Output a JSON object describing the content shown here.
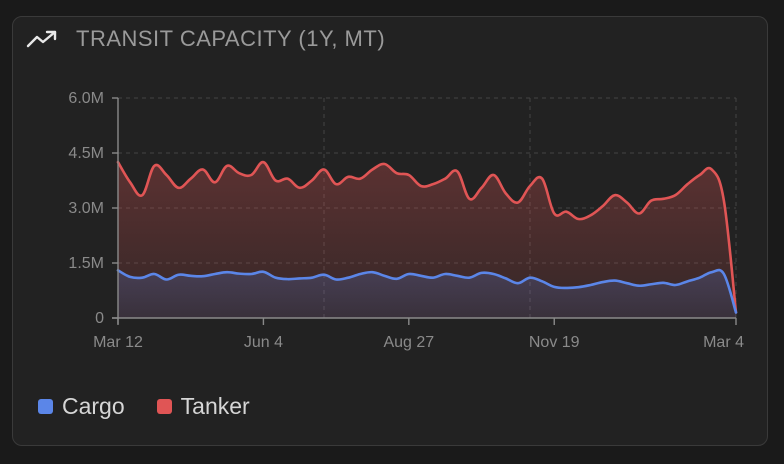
{
  "card": {
    "title": "TRANSIT CAPACITY (1Y, MT)",
    "icon": "trending-up-icon"
  },
  "colors": {
    "cargo": "#5b86e8",
    "tanker": "#e05555",
    "axis": "#8a8a8a",
    "grid": "#444444"
  },
  "chart_data": {
    "type": "area",
    "title": "TRANSIT CAPACITY (1Y, MT)",
    "ylim": [
      0,
      6000000
    ],
    "y_ticks": [
      {
        "value": 0,
        "label": "0"
      },
      {
        "value": 1500000,
        "label": "1.5M"
      },
      {
        "value": 3000000,
        "label": "3.0M"
      },
      {
        "value": 4500000,
        "label": "4.5M"
      },
      {
        "value": 6000000,
        "label": "6.0M"
      }
    ],
    "x_ticks": [
      {
        "index": 0,
        "label": "Mar 12"
      },
      {
        "index": 12,
        "label": "Jun 4"
      },
      {
        "index": 24,
        "label": "Aug 27"
      },
      {
        "index": 36,
        "label": "Nov 19"
      },
      {
        "index": 51,
        "label": "Mar 4"
      }
    ],
    "series": [
      {
        "name": "Cargo",
        "color": "#5b86e8",
        "values": [
          1300000,
          1120000,
          1100000,
          1200000,
          1050000,
          1180000,
          1150000,
          1140000,
          1200000,
          1250000,
          1210000,
          1200000,
          1260000,
          1100000,
          1060000,
          1080000,
          1100000,
          1180000,
          1050000,
          1100000,
          1200000,
          1250000,
          1150000,
          1070000,
          1200000,
          1150000,
          1100000,
          1200000,
          1150000,
          1100000,
          1230000,
          1200000,
          1080000,
          950000,
          1100000,
          1000000,
          850000,
          820000,
          840000,
          900000,
          980000,
          1020000,
          950000,
          880000,
          920000,
          960000,
          900000,
          1000000,
          1100000,
          1250000,
          1200000,
          150000
        ]
      },
      {
        "name": "Tanker",
        "color": "#e05555",
        "values": [
          4250000,
          3700000,
          3350000,
          4150000,
          3900000,
          3550000,
          3800000,
          4050000,
          3700000,
          4150000,
          3950000,
          3900000,
          4250000,
          3750000,
          3800000,
          3550000,
          3750000,
          4050000,
          3650000,
          3850000,
          3800000,
          4050000,
          4200000,
          3950000,
          3900000,
          3600000,
          3650000,
          3800000,
          4000000,
          3250000,
          3550000,
          3900000,
          3400000,
          3150000,
          3600000,
          3800000,
          2850000,
          2900000,
          2700000,
          2800000,
          3050000,
          3350000,
          3150000,
          2850000,
          3200000,
          3250000,
          3350000,
          3650000,
          3900000,
          4050000,
          3200000,
          150000
        ]
      }
    ],
    "legend_position": "bottom-left",
    "grid": true
  }
}
